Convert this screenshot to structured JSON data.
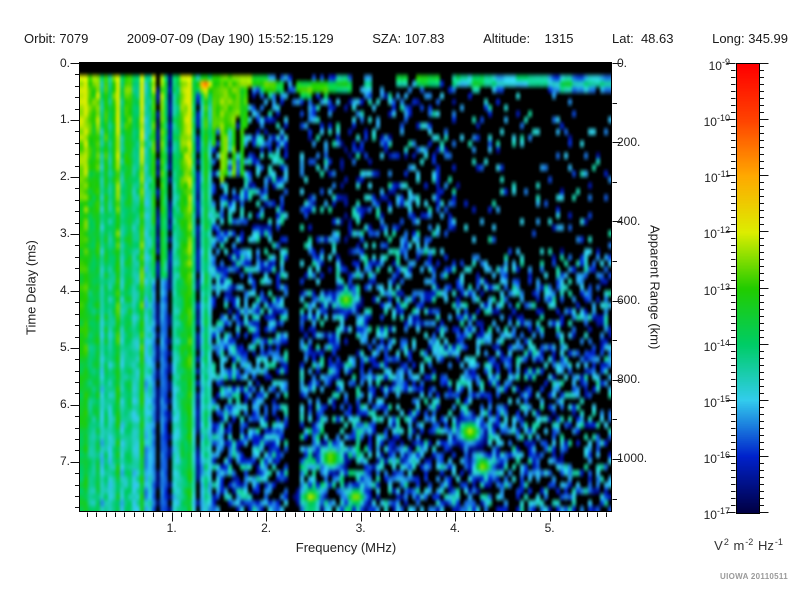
{
  "header": {
    "orbit": "Orbit: 7079",
    "datetime": "2009-07-09 (Day 190) 15:52:15.129",
    "sza": "SZA: 107.83",
    "altitude": "Altitude:    1315",
    "lat": "Lat:  48.63",
    "long": "Long: 345.99"
  },
  "watermark": "UIOWA 20110511",
  "colors": {
    "background": "#ffffff",
    "text": "#1a1a1a",
    "axis": "#111111",
    "watermark": "#9a9a9a",
    "plot_background": "#000000"
  },
  "chart_data": {
    "type": "heatmap",
    "title": "",
    "xlabel": "Frequency (MHz)",
    "ylabel_left": "Time Delay (ms)",
    "ylabel_right": "Apparent Range (km)",
    "x_range": [
      0.03,
      5.66
    ],
    "x_ticks": [
      1,
      2,
      3,
      4,
      5
    ],
    "x_tick_labels": [
      "1.",
      "2.",
      "3.",
      "4.",
      "5."
    ],
    "x_minor_step": 0.1,
    "y_range": [
      0,
      7.88
    ],
    "y_ticks": [
      0,
      1,
      2,
      3,
      4,
      5,
      6,
      7
    ],
    "y_tick_labels": [
      "0.",
      "1.",
      "2.",
      "3.",
      "4.",
      "5.",
      "6.",
      "7."
    ],
    "y_minor_step": 0.2,
    "y2_range": [
      0,
      1134
    ],
    "y2_ticks": [
      0,
      200,
      400,
      600,
      800,
      1000
    ],
    "y2_tick_labels": [
      "0.",
      "200.",
      "400.",
      "600.",
      "800.",
      "1000."
    ],
    "y2_minor_step": 100,
    "grid": false,
    "legend_position": "none",
    "colorbar": {
      "base": "10",
      "exponents": [
        "-9",
        "-10",
        "-11",
        "-12",
        "-13",
        "-14",
        "-15",
        "-16",
        "-17"
      ],
      "scale": "log",
      "range_exponents": [
        -17,
        -9
      ],
      "minor_divisions_per_decade": 8
    },
    "units": [
      [
        "V",
        "2"
      ],
      [
        "m",
        "-2"
      ],
      [
        "Hz",
        "-1"
      ]
    ],
    "colormap_stops": [
      [
        0.0,
        "#000044"
      ],
      [
        0.125,
        "#0022CC"
      ],
      [
        0.25,
        "#33CCEE"
      ],
      [
        0.375,
        "#00CC66"
      ],
      [
        0.5,
        "#22CC00"
      ],
      [
        0.625,
        "#DDEE00"
      ],
      [
        0.75,
        "#FFAA00"
      ],
      [
        0.875,
        "#FF4400"
      ],
      [
        1.0,
        "#FF0000"
      ]
    ],
    "summary": "Radar-sounder ionogram spectrogram: bright green/cyan vertical striations below ~1.5 MHz extending over all time delays, a horizontal cyan-blue echo trace near 0.3 ms delay across all frequencies, diffuse dark-blue speckle noise over a black background elsewhere, a black gap column near 2.35 MHz, and near-black region at upper right.",
    "heatmap": {
      "cols": 133,
      "rows": 75,
      "black_below": 0.03,
      "top_black_until": 72,
      "speckle_y_start": 95,
      "stripes": {
        "x_end": 212,
        "bright_cols": [
          0,
          1,
          26,
          27
        ],
        "dark_zone": [
          152,
          174,
          280
        ]
      },
      "wedge": {
        "x_end": 250,
        "y_base": 108,
        "y_ragged": 80
      },
      "trace_x_start": 240,
      "trace_path": [
        [
          240,
          82
        ],
        [
          280,
          86
        ],
        [
          320,
          90
        ],
        [
          360,
          84
        ],
        [
          400,
          80
        ],
        [
          440,
          79
        ],
        [
          480,
          82
        ],
        [
          520,
          80
        ],
        [
          560,
          84
        ],
        [
          612,
          83
        ]
      ],
      "gap_column": [
        290,
        302
      ],
      "dim_column": [
        340,
        354,
        265
      ],
      "hotspots": [
        [
          205,
          85,
          7,
          0.62
        ],
        [
          470,
          432,
          8,
          0.4
        ],
        [
          483,
          466,
          7,
          0.38
        ],
        [
          346,
          300,
          7,
          0.36
        ],
        [
          331,
          458,
          8,
          0.38
        ],
        [
          311,
          497,
          7,
          0.4
        ],
        [
          356,
          497,
          7,
          0.38
        ]
      ]
    }
  }
}
